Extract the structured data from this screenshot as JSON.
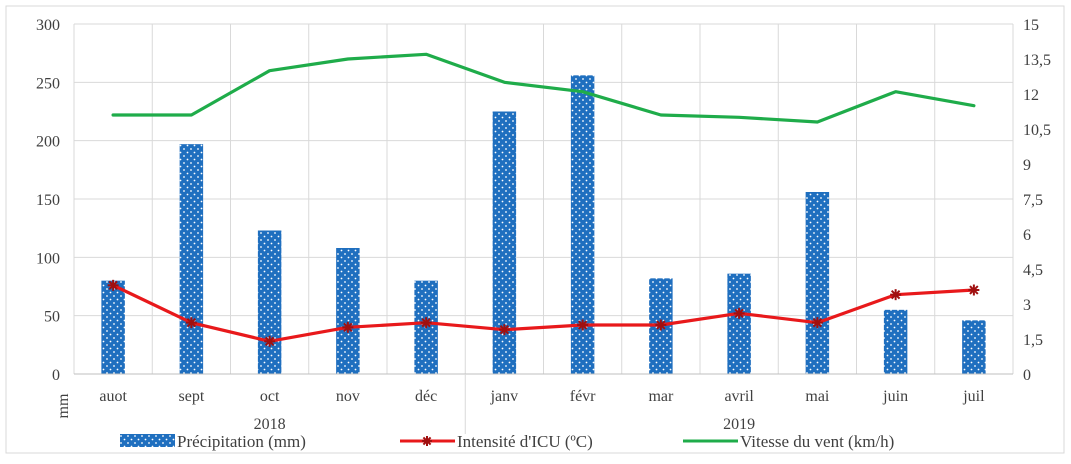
{
  "chart_data": {
    "type": "bar",
    "categories": [
      "auot",
      "sept",
      "oct",
      "nov",
      "déc",
      "janv",
      "févr",
      "mar",
      "avril",
      "mai",
      "juin",
      "juil"
    ],
    "groups": [
      {
        "label": "2018",
        "from": 0,
        "to": 4
      },
      {
        "label": "2019",
        "from": 5,
        "to": 11
      }
    ],
    "ylabel": "mm",
    "ylim": [
      0,
      300
    ],
    "yticks": [
      0,
      50,
      100,
      150,
      200,
      250,
      300
    ],
    "ylim_right": [
      0,
      15
    ],
    "yticks_right": [
      "0",
      "1,5",
      "3",
      "4,5",
      "6",
      "7,5",
      "9",
      "10,5",
      "12",
      "13,5",
      "15"
    ],
    "grid": true,
    "legend_position": "bottom",
    "series": [
      {
        "name": "Précipitation (mm)",
        "type": "bar",
        "axis": "left",
        "color": "#1f6fbf",
        "values": [
          80,
          197,
          123,
          108,
          80,
          225,
          256,
          82,
          86,
          156,
          55,
          46
        ]
      },
      {
        "name": "Intensité d'ICU (ºC)",
        "type": "line",
        "axis": "right",
        "color": "#e8191b",
        "marker": "star",
        "values": [
          3.8,
          2.2,
          1.4,
          2.0,
          2.2,
          1.9,
          2.1,
          2.1,
          2.6,
          2.2,
          3.4,
          3.6
        ]
      },
      {
        "name": "Vitesse du vent (km/h)",
        "type": "line",
        "axis": "right",
        "color": "#1fac4a",
        "values": [
          11.1,
          11.1,
          13.0,
          13.5,
          13.7,
          12.5,
          12.1,
          11.1,
          11.0,
          10.8,
          12.1,
          11.5
        ]
      }
    ]
  }
}
